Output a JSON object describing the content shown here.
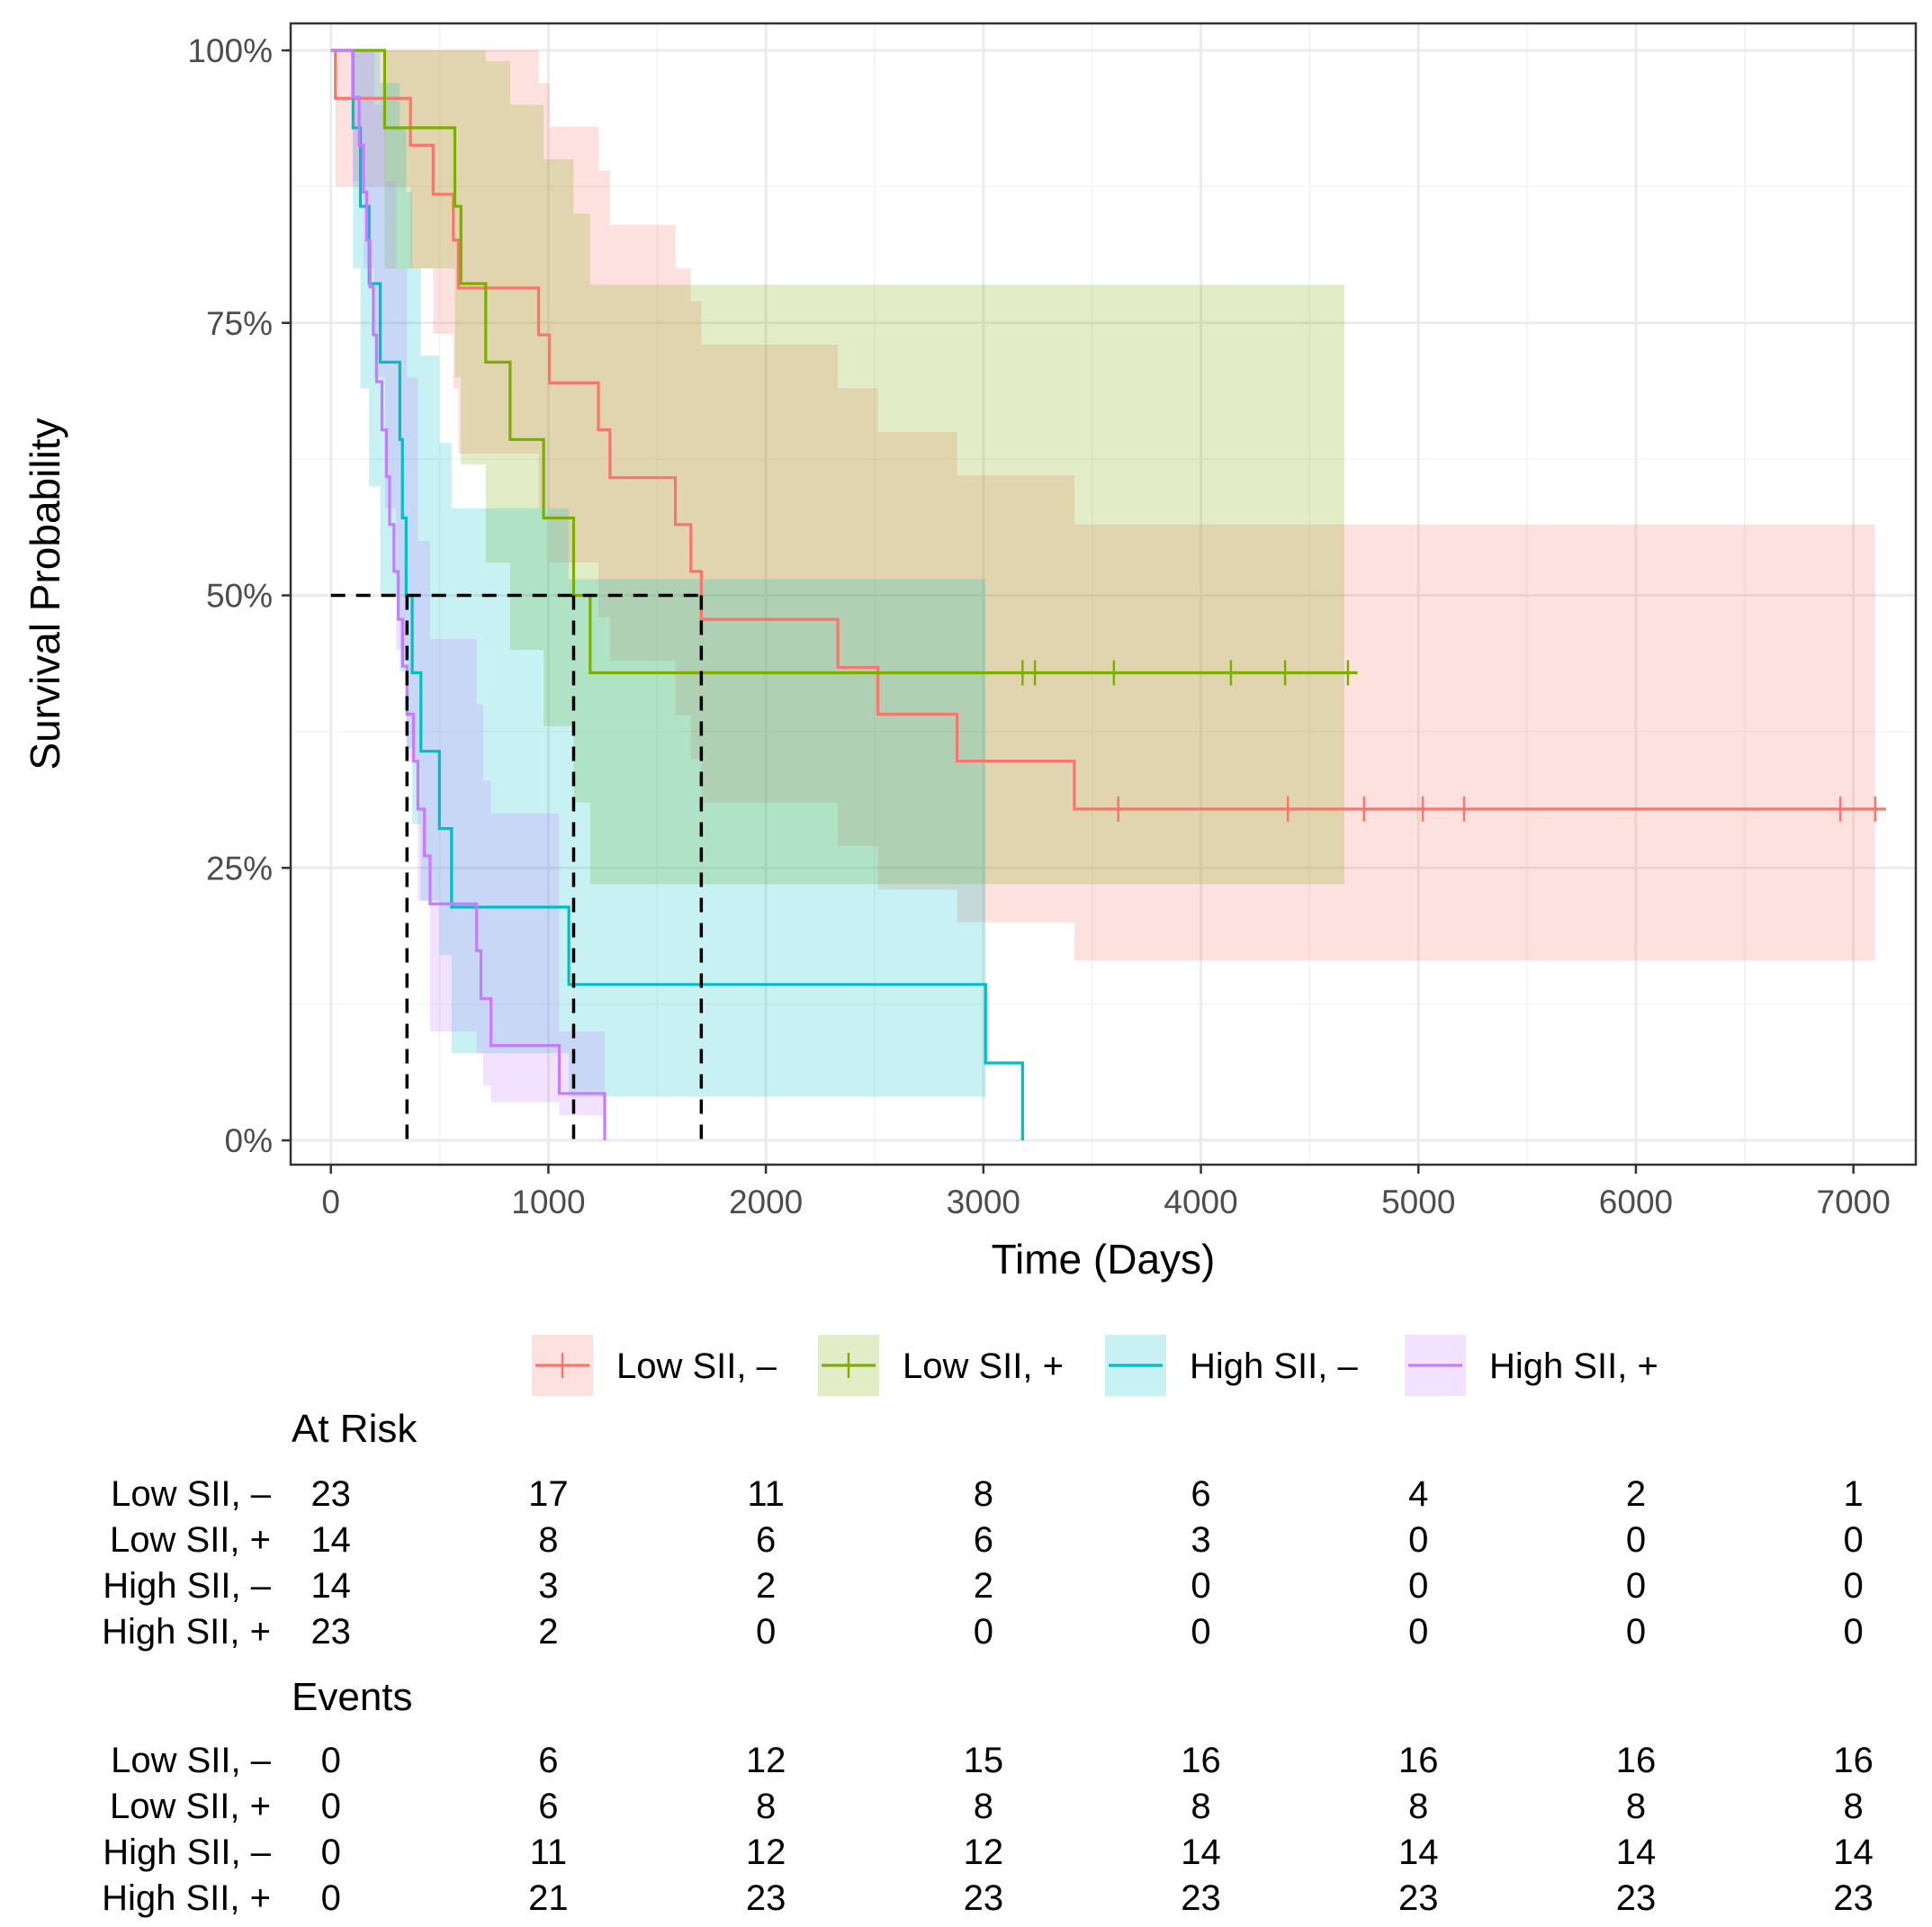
{
  "chart_data": {
    "type": "line",
    "subtype": "kaplan-meier",
    "xlabel": "Time (Days)",
    "ylabel": "Survival Probability",
    "xlim": [
      0,
      7000
    ],
    "ylim": [
      0,
      1
    ],
    "x_ticks": [
      0,
      1000,
      2000,
      3000,
      4000,
      5000,
      6000,
      7000
    ],
    "x_tick_labels": [
      "0",
      "1000",
      "2000",
      "3000",
      "4000",
      "5000",
      "6000",
      "7000"
    ],
    "y_ticks": [
      0,
      0.25,
      0.5,
      0.75,
      1
    ],
    "y_tick_labels": [
      "0%",
      "25%",
      "50%",
      "75%",
      "100%"
    ],
    "grid": true,
    "legend_position": "bottom",
    "median_lines": {
      "y": 0.5,
      "x": [
        350,
        1116,
        1703
      ]
    },
    "series": [
      {
        "name": "Low SII, –",
        "color": "#F8766D",
        "steps": [
          [
            0,
            1
          ],
          [
            21,
            0.956
          ],
          [
            366,
            0.913
          ],
          [
            470,
            0.868
          ],
          [
            563,
            0.826
          ],
          [
            586,
            0.782
          ],
          [
            955,
            0.739
          ],
          [
            1005,
            0.695
          ],
          [
            1230,
            0.652
          ],
          [
            1283,
            0.608
          ],
          [
            1584,
            0.565
          ],
          [
            1655,
            0.522
          ],
          [
            1703,
            0.478
          ],
          [
            2331,
            0.434
          ],
          [
            2515,
            0.391
          ],
          [
            2879,
            0.348
          ],
          [
            3418,
            0.304
          ]
        ],
        "end": 7150,
        "censor": [
          3620,
          4400,
          4750,
          5020,
          5210,
          6940,
          7100
        ],
        "ci": [
          [
            0,
            1,
            1
          ],
          [
            21,
            0.875,
            1
          ],
          [
            366,
            0.8,
            1
          ],
          [
            470,
            0.74,
            1
          ],
          [
            563,
            0.69,
            1
          ],
          [
            586,
            0.63,
            1
          ],
          [
            955,
            0.58,
            0.97
          ],
          [
            1005,
            0.53,
            0.93
          ],
          [
            1230,
            0.48,
            0.89
          ],
          [
            1283,
            0.44,
            0.84
          ],
          [
            1584,
            0.39,
            0.8
          ],
          [
            1655,
            0.35,
            0.77
          ],
          [
            1703,
            0.31,
            0.73
          ],
          [
            2331,
            0.27,
            0.69
          ],
          [
            2515,
            0.23,
            0.65
          ],
          [
            2879,
            0.2,
            0.61
          ],
          [
            3418,
            0.165,
            0.565
          ]
        ],
        "ci_end": 7100
      },
      {
        "name": "Low SII, +",
        "color": "#7CAE00",
        "steps": [
          [
            0,
            1
          ],
          [
            247,
            0.929
          ],
          [
            570,
            0.857
          ],
          [
            598,
            0.786
          ],
          [
            712,
            0.714
          ],
          [
            824,
            0.643
          ],
          [
            978,
            0.571
          ],
          [
            1116,
            0.5
          ],
          [
            1192,
            0.429
          ]
        ],
        "end": 4720,
        "censor": [
          3180,
          3237,
          3600,
          4138,
          4387,
          4676
        ],
        "ci": [
          [
            0,
            1,
            1
          ],
          [
            247,
            0.8,
            1
          ],
          [
            570,
            0.7,
            1
          ],
          [
            598,
            0.62,
            1
          ],
          [
            712,
            0.53,
            0.99
          ],
          [
            824,
            0.45,
            0.95
          ],
          [
            978,
            0.38,
            0.9
          ],
          [
            1116,
            0.31,
            0.85
          ],
          [
            1192,
            0.235,
            0.785
          ]
        ],
        "ci_end": 4660
      },
      {
        "name": "High SII, –",
        "color": "#00BFC4",
        "steps": [
          [
            0,
            1
          ],
          [
            102,
            0.929
          ],
          [
            136,
            0.857
          ],
          [
            176,
            0.786
          ],
          [
            227,
            0.714
          ],
          [
            317,
            0.643
          ],
          [
            329,
            0.571
          ],
          [
            346,
            0.5
          ],
          [
            374,
            0.429
          ],
          [
            414,
            0.357
          ],
          [
            499,
            0.286
          ],
          [
            555,
            0.214
          ],
          [
            1094,
            0.143
          ],
          [
            3010,
            0.071
          ],
          [
            3180,
            0
          ]
        ],
        "end": 3180,
        "censor": [],
        "ci": [
          [
            0,
            1,
            1
          ],
          [
            102,
            0.8,
            1
          ],
          [
            136,
            0.69,
            1
          ],
          [
            176,
            0.6,
            1
          ],
          [
            227,
            0.5,
            0.97
          ],
          [
            317,
            0.43,
            0.93
          ],
          [
            346,
            0.36,
            0.87
          ],
          [
            374,
            0.29,
            0.8
          ],
          [
            414,
            0.22,
            0.72
          ],
          [
            499,
            0.17,
            0.64
          ],
          [
            555,
            0.08,
            0.58
          ],
          [
            1094,
            0.04,
            0.515
          ]
        ],
        "ci_end": 3010
      },
      {
        "name": "High SII, +",
        "color": "#C77CFF",
        "steps": [
          [
            0,
            1
          ],
          [
            100,
            0.957
          ],
          [
            130,
            0.913
          ],
          [
            150,
            0.87
          ],
          [
            165,
            0.826
          ],
          [
            180,
            0.783
          ],
          [
            195,
            0.739
          ],
          [
            210,
            0.696
          ],
          [
            235,
            0.652
          ],
          [
            255,
            0.609
          ],
          [
            270,
            0.565
          ],
          [
            290,
            0.522
          ],
          [
            310,
            0.478
          ],
          [
            330,
            0.435
          ],
          [
            350,
            0.391
          ],
          [
            380,
            0.348
          ],
          [
            400,
            0.304
          ],
          [
            430,
            0.261
          ],
          [
            456,
            0.217
          ],
          [
            670,
            0.174
          ],
          [
            690,
            0.13
          ],
          [
            736,
            0.087
          ],
          [
            1050,
            0.043
          ],
          [
            1259,
            0
          ]
        ],
        "end": 1259,
        "censor": [],
        "ci": [
          [
            0,
            1,
            1
          ],
          [
            100,
            0.88,
            1
          ],
          [
            150,
            0.8,
            1
          ],
          [
            200,
            0.7,
            0.95
          ],
          [
            250,
            0.58,
            0.88
          ],
          [
            300,
            0.45,
            0.8
          ],
          [
            350,
            0.35,
            0.7
          ],
          [
            400,
            0.22,
            0.55
          ],
          [
            456,
            0.1,
            0.46
          ],
          [
            670,
            0.08,
            0.4
          ],
          [
            700,
            0.05,
            0.33
          ],
          [
            736,
            0.035,
            0.3
          ],
          [
            1050,
            0.023,
            0.1
          ]
        ],
        "ci_end": 1259
      }
    ],
    "legend": [
      "Low SII, –",
      "Low SII, +",
      "High SII, –",
      "High SII, +"
    ],
    "risk_table": {
      "title": "At Risk",
      "times": [
        0,
        1000,
        2000,
        3000,
        4000,
        5000,
        6000,
        7000
      ],
      "rows": [
        {
          "label": "Low SII, –",
          "values": [
            "23",
            "17",
            "11",
            "8",
            "6",
            "4",
            "2",
            "1"
          ]
        },
        {
          "label": "Low SII, +",
          "values": [
            "14",
            "8",
            "6",
            "6",
            "3",
            "0",
            "0",
            "0"
          ]
        },
        {
          "label": "High SII, –",
          "values": [
            "14",
            "3",
            "2",
            "2",
            "0",
            "0",
            "0",
            "0"
          ]
        },
        {
          "label": "High SII, +",
          "values": [
            "23",
            "2",
            "0",
            "0",
            "0",
            "0",
            "0",
            "0"
          ]
        }
      ]
    },
    "events_table": {
      "title": "Events",
      "times": [
        0,
        1000,
        2000,
        3000,
        4000,
        5000,
        6000,
        7000
      ],
      "rows": [
        {
          "label": "Low SII, –",
          "values": [
            "0",
            "6",
            "12",
            "15",
            "16",
            "16",
            "16",
            "16"
          ]
        },
        {
          "label": "Low SII, +",
          "values": [
            "0",
            "6",
            "8",
            "8",
            "8",
            "8",
            "8",
            "8"
          ]
        },
        {
          "label": "High SII, –",
          "values": [
            "0",
            "11",
            "12",
            "12",
            "14",
            "14",
            "14",
            "14"
          ]
        },
        {
          "label": "High SII, +",
          "values": [
            "0",
            "21",
            "23",
            "23",
            "23",
            "23",
            "23",
            "23"
          ]
        }
      ]
    }
  }
}
